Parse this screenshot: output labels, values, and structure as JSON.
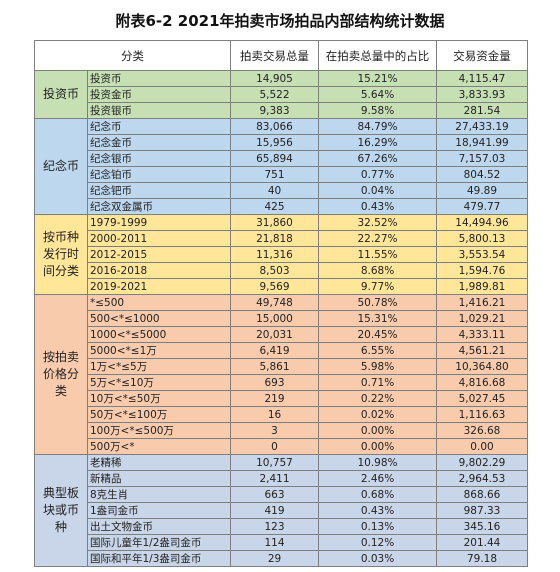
{
  "title": "附表6-2  2021年拍卖市场拍品内部结构统计数据",
  "header": [
    "分类",
    "拍卖交易总量",
    "在拍卖总量中的占比",
    "交易资金量"
  ],
  "groups": [
    {
      "label": "投资币",
      "color": "#c6e0b4",
      "rows": [
        [
          "投资币",
          "14,905",
          "15.21%",
          "4,115.47"
        ],
        [
          "投资金币",
          "5,522",
          "5.64%",
          "3,833.93"
        ],
        [
          "投资银币",
          "9,383",
          "9.58%",
          "281.54"
        ]
      ]
    },
    {
      "label": "纪念币",
      "color": "#bdd7ee",
      "rows": [
        [
          "纪念币",
          "83,066",
          "84.79%",
          "27,433.19"
        ],
        [
          "纪念金币",
          "15,956",
          "16.29%",
          "18,941.99"
        ],
        [
          "纪念银币",
          "65,894",
          "67.26%",
          "7,157.03"
        ],
        [
          "纪念铂币",
          "751",
          "0.77%",
          "804.52"
        ],
        [
          "纪念钯币",
          "40",
          "0.04%",
          "49.89"
        ],
        [
          "纪念双金属币",
          "425",
          "0.43%",
          "479.77"
        ]
      ]
    },
    {
      "label": "按币种发行时间分类",
      "color": "#ffe699",
      "rows": [
        [
          "1979-1999",
          "31,860",
          "32.52%",
          "14,494.96"
        ],
        [
          "2000-2011",
          "21,818",
          "22.27%",
          "5,800.13"
        ],
        [
          "2012-2015",
          "11,316",
          "11.55%",
          "3,553.54"
        ],
        [
          "2016-2018",
          "8,503",
          "8.68%",
          "1,594.76"
        ],
        [
          "2019-2021",
          "9,569",
          "9.77%",
          "1,989.81"
        ]
      ]
    },
    {
      "label": "按拍卖价格分类",
      "color": "#f8cbad",
      "rows": [
        [
          "*≤500",
          "49,748",
          "50.78%",
          "1,416.21"
        ],
        [
          "500<*≤1000",
          "15,000",
          "15.31%",
          "1,029.21"
        ],
        [
          "1000<*≤5000",
          "20,031",
          "20.45%",
          "4,333.11"
        ],
        [
          "5000<*≤1万",
          "6,419",
          "6.55%",
          "4,561.21"
        ],
        [
          "1万<*≤5万",
          "5,861",
          "5.98%",
          "10,364.80"
        ],
        [
          "5万<*≤10万",
          "693",
          "0.71%",
          "4,816.68"
        ],
        [
          "10万<*≤50万",
          "219",
          "0.22%",
          "5,027.45"
        ],
        [
          "50万<*≤100万",
          "16",
          "0.02%",
          "1,116.63"
        ],
        [
          "100万<*≤500万",
          "3",
          "0.00%",
          "326.68"
        ],
        [
          "500万<*",
          "0",
          "0.00%",
          "0.00"
        ]
      ]
    },
    {
      "label": "典型板块或币种",
      "color": "#c9d5e8",
      "rows": [
        [
          "老精稀",
          "10,757",
          "10.98%",
          "9,802.29"
        ],
        [
          "新精品",
          "2,411",
          "2.46%",
          "2,964.53"
        ],
        [
          "8克生肖",
          "663",
          "0.68%",
          "868.66"
        ],
        [
          "1盎司金币",
          "419",
          "0.43%",
          "987.33"
        ],
        [
          "出土文物金币",
          "123",
          "0.13%",
          "345.16"
        ],
        [
          "国际儿童年1/2盎司金币",
          "114",
          "0.12%",
          "201.44"
        ],
        [
          "国际和平年1/3盎司金币",
          "29",
          "0.03%",
          "79.18"
        ]
      ]
    }
  ]
}
